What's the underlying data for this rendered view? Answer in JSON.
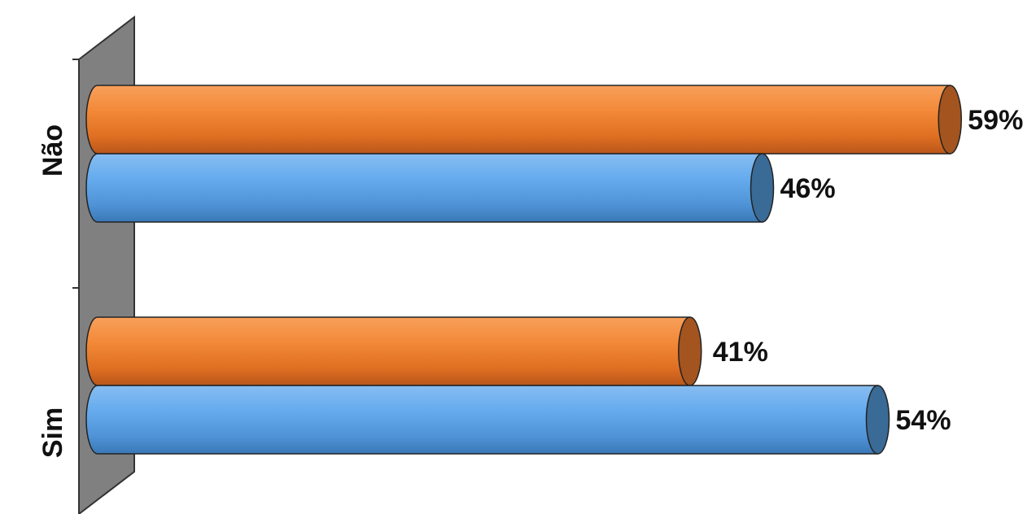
{
  "chart_data": {
    "type": "bar",
    "orientation": "horizontal",
    "style": "3d-cylinder",
    "categories": [
      "Não",
      "Sim"
    ],
    "series": [
      {
        "values": [
          59,
          41
        ],
        "color": "#e8782f",
        "end_color": "#a4541f"
      },
      {
        "values": [
          46,
          54
        ],
        "color": "#5da5e8",
        "end_color": "#3a6a96"
      }
    ],
    "data_labels": [
      [
        "59%",
        "41%"
      ],
      [
        "46%",
        "54%"
      ]
    ],
    "value_unit": "%",
    "xlim": [
      0,
      60
    ],
    "legend": "none",
    "grid": false,
    "wall_color": "#808080"
  }
}
